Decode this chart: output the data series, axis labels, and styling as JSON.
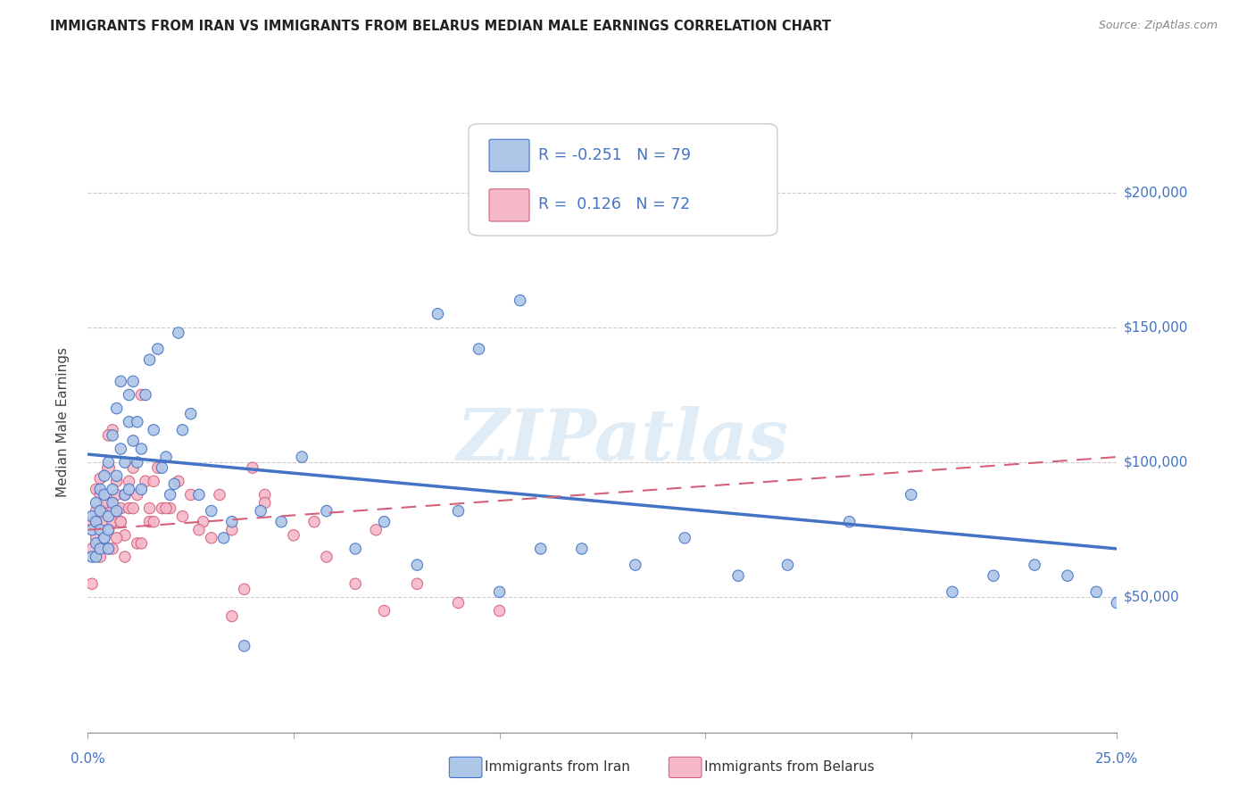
{
  "title": "IMMIGRANTS FROM IRAN VS IMMIGRANTS FROM BELARUS MEDIAN MALE EARNINGS CORRELATION CHART",
  "source": "Source: ZipAtlas.com",
  "ylabel": "Median Male Earnings",
  "xlim": [
    0.0,
    0.25
  ],
  "ylim": [
    0,
    230000
  ],
  "iran_color": "#aec6e8",
  "iran_color_dark": "#4472c4",
  "belarus_color": "#f4b8c8",
  "belarus_color_dark": "#d4607a",
  "iran_R": -0.251,
  "iran_N": 79,
  "belarus_R": 0.126,
  "belarus_N": 72,
  "watermark": "ZIPatlas",
  "legend_iran_label": "Immigrants from Iran",
  "legend_belarus_label": "Immigrants from Belarus",
  "iran_trend_x": [
    0.0,
    0.25
  ],
  "iran_trend_y": [
    103000,
    68000
  ],
  "belarus_trend_x": [
    0.0,
    0.25
  ],
  "belarus_trend_y": [
    75000,
    102000
  ],
  "iran_x": [
    0.001,
    0.001,
    0.001,
    0.002,
    0.002,
    0.002,
    0.002,
    0.003,
    0.003,
    0.003,
    0.003,
    0.004,
    0.004,
    0.004,
    0.005,
    0.005,
    0.005,
    0.005,
    0.006,
    0.006,
    0.006,
    0.007,
    0.007,
    0.007,
    0.008,
    0.008,
    0.009,
    0.009,
    0.01,
    0.01,
    0.01,
    0.011,
    0.011,
    0.012,
    0.012,
    0.013,
    0.013,
    0.014,
    0.015,
    0.016,
    0.017,
    0.018,
    0.019,
    0.02,
    0.021,
    0.022,
    0.023,
    0.025,
    0.027,
    0.03,
    0.033,
    0.035,
    0.038,
    0.042,
    0.047,
    0.052,
    0.058,
    0.065,
    0.072,
    0.08,
    0.09,
    0.1,
    0.11,
    0.12,
    0.133,
    0.145,
    0.158,
    0.17,
    0.185,
    0.2,
    0.21,
    0.22,
    0.23,
    0.238,
    0.245,
    0.25,
    0.085,
    0.095,
    0.105
  ],
  "iran_y": [
    75000,
    65000,
    80000,
    70000,
    85000,
    65000,
    78000,
    90000,
    75000,
    82000,
    68000,
    88000,
    72000,
    95000,
    100000,
    80000,
    75000,
    68000,
    110000,
    90000,
    85000,
    120000,
    95000,
    82000,
    130000,
    105000,
    100000,
    88000,
    125000,
    115000,
    90000,
    108000,
    130000,
    100000,
    115000,
    105000,
    90000,
    125000,
    138000,
    112000,
    142000,
    98000,
    102000,
    88000,
    92000,
    148000,
    112000,
    118000,
    88000,
    82000,
    72000,
    78000,
    32000,
    82000,
    78000,
    102000,
    82000,
    68000,
    78000,
    62000,
    82000,
    52000,
    68000,
    68000,
    62000,
    72000,
    58000,
    62000,
    78000,
    88000,
    52000,
    58000,
    62000,
    58000,
    52000,
    48000,
    155000,
    142000,
    160000
  ],
  "iran_size": [
    80,
    80,
    80,
    80,
    80,
    80,
    80,
    80,
    80,
    80,
    80,
    80,
    80,
    80,
    80,
    80,
    80,
    80,
    80,
    80,
    80,
    80,
    80,
    80,
    80,
    80,
    80,
    80,
    80,
    80,
    80,
    80,
    80,
    80,
    80,
    80,
    80,
    80,
    80,
    80,
    80,
    80,
    80,
    80,
    80,
    80,
    80,
    80,
    80,
    80,
    80,
    80,
    80,
    80,
    80,
    80,
    80,
    80,
    80,
    80,
    80,
    80,
    80,
    80,
    80,
    80,
    80,
    80,
    80,
    80,
    80,
    80,
    80,
    80,
    80,
    80,
    80,
    80,
    80
  ],
  "belarus_x": [
    0.001,
    0.001,
    0.001,
    0.002,
    0.002,
    0.002,
    0.003,
    0.003,
    0.003,
    0.004,
    0.004,
    0.004,
    0.005,
    0.005,
    0.005,
    0.005,
    0.006,
    0.006,
    0.006,
    0.007,
    0.007,
    0.008,
    0.008,
    0.009,
    0.009,
    0.01,
    0.01,
    0.011,
    0.012,
    0.013,
    0.014,
    0.015,
    0.016,
    0.017,
    0.018,
    0.02,
    0.022,
    0.025,
    0.028,
    0.032,
    0.035,
    0.038,
    0.04,
    0.043,
    0.05,
    0.058,
    0.065,
    0.072,
    0.08,
    0.09,
    0.1,
    0.005,
    0.015,
    0.003,
    0.007,
    0.012,
    0.008,
    0.004,
    0.006,
    0.009,
    0.002,
    0.011,
    0.013,
    0.016,
    0.019,
    0.023,
    0.027,
    0.03,
    0.035,
    0.043,
    0.055,
    0.07
  ],
  "belarus_y": [
    68000,
    78000,
    55000,
    82000,
    72000,
    90000,
    88000,
    68000,
    94000,
    78000,
    83000,
    72000,
    98000,
    68000,
    75000,
    85000,
    83000,
    112000,
    78000,
    93000,
    88000,
    83000,
    78000,
    73000,
    88000,
    93000,
    83000,
    98000,
    88000,
    125000,
    93000,
    83000,
    93000,
    98000,
    83000,
    83000,
    93000,
    88000,
    78000,
    88000,
    43000,
    53000,
    98000,
    88000,
    73000,
    65000,
    55000,
    45000,
    55000,
    48000,
    45000,
    110000,
    78000,
    65000,
    72000,
    70000,
    78000,
    85000,
    68000,
    65000,
    78000,
    83000,
    70000,
    78000,
    83000,
    80000,
    75000,
    72000,
    75000,
    85000,
    78000,
    75000
  ],
  "belarus_size": [
    80,
    80,
    80,
    80,
    80,
    80,
    80,
    80,
    80,
    80,
    80,
    80,
    100,
    80,
    80,
    80,
    80,
    80,
    80,
    80,
    80,
    80,
    80,
    80,
    80,
    80,
    80,
    80,
    80,
    80,
    80,
    80,
    80,
    80,
    80,
    80,
    80,
    80,
    80,
    80,
    80,
    80,
    80,
    80,
    80,
    80,
    80,
    80,
    80,
    80,
    80,
    80,
    80,
    80,
    80,
    80,
    80,
    80,
    80,
    80,
    80,
    80,
    80,
    80,
    80,
    80,
    80,
    80,
    80,
    80,
    80,
    80
  ]
}
